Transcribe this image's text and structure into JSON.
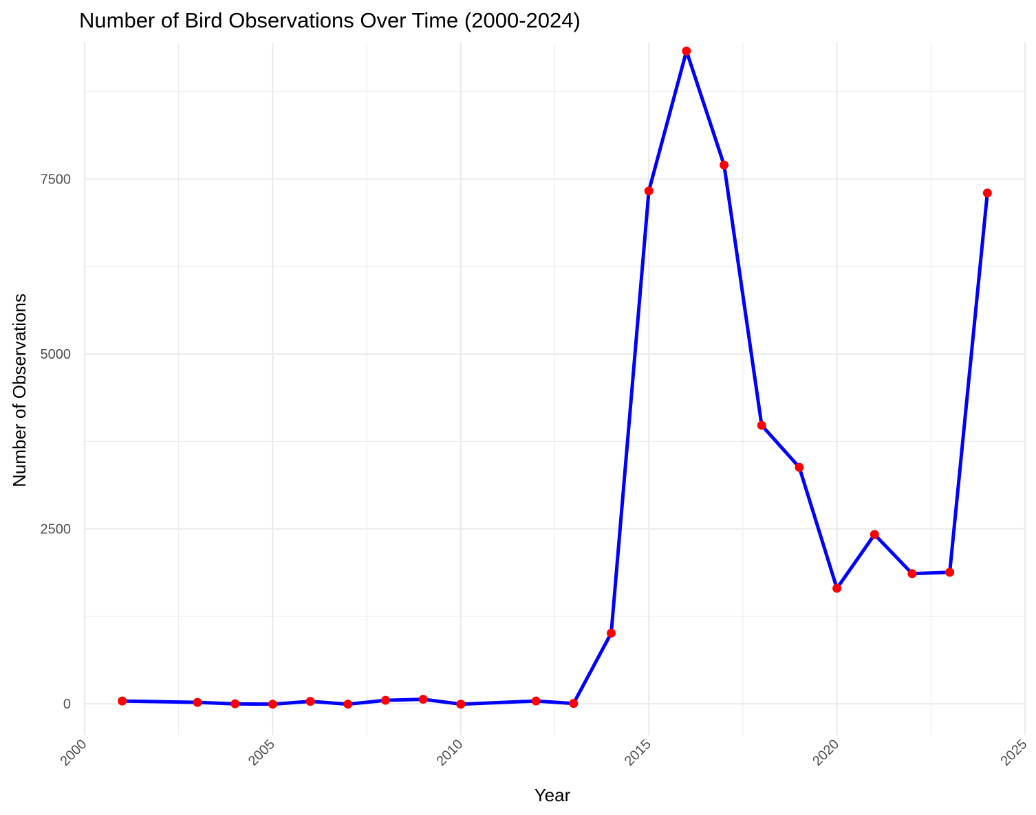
{
  "chart_data": {
    "type": "line",
    "title": "Number of Bird Observations Over Time (2000-2024)",
    "xlabel": "Year",
    "ylabel": "Number of Observations",
    "xlim": [
      2000,
      2025
    ],
    "ylim": [
      -450,
      9450
    ],
    "x_ticks": [
      2000,
      2005,
      2010,
      2015,
      2020,
      2025
    ],
    "y_ticks": [
      0,
      2500,
      5000,
      7500
    ],
    "grid": true,
    "legend": "none",
    "colors": {
      "line": "#0000ff",
      "points": "#ff0000",
      "grid": "#ebebeb",
      "tick_text": "#4d4d4d"
    },
    "series": [
      {
        "x": [
          2001,
          2003,
          2004,
          2005,
          2006,
          2007,
          2008,
          2009,
          2010,
          2012,
          2013,
          2014,
          2015,
          2016,
          2017,
          2018,
          2019,
          2020,
          2021,
          2022,
          2023,
          2024
        ],
        "y": [
          40,
          20,
          0,
          -5,
          35,
          -5,
          50,
          65,
          -5,
          40,
          5,
          1010,
          7330,
          9330,
          7700,
          3980,
          3380,
          1650,
          2420,
          1860,
          1880,
          7300
        ]
      }
    ]
  }
}
